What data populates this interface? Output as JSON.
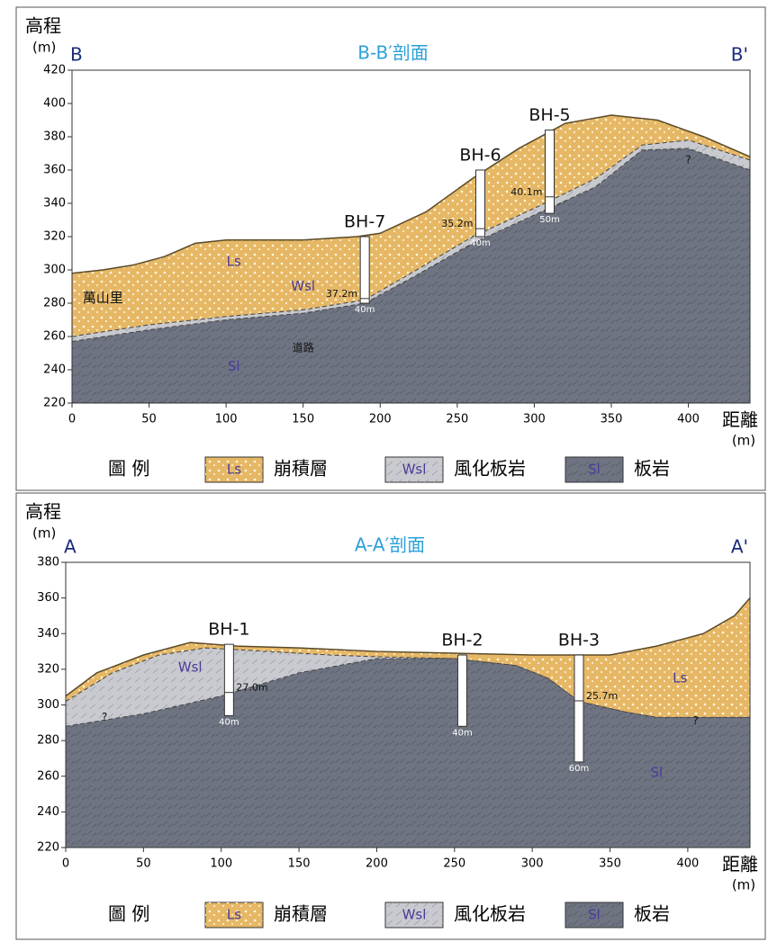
{
  "chart_data": [
    {
      "type": "section",
      "title": "B-B′剖面",
      "left_label": "B",
      "right_label": "B'",
      "y_label": "高程",
      "y_unit": "(m)",
      "x_label": "距離",
      "x_unit": "(m)",
      "xlim": [
        0,
        440
      ],
      "xticks": [
        0,
        50,
        100,
        150,
        200,
        250,
        300,
        350,
        400
      ],
      "ylim": [
        220,
        420
      ],
      "yticks": [
        220,
        240,
        260,
        280,
        300,
        320,
        340,
        360,
        380,
        400,
        420
      ],
      "legend_title": "圖 例",
      "layers": [
        {
          "name": "Ls",
          "description": "崩積層",
          "color": "#e6b866",
          "x": [
            0,
            20,
            40,
            60,
            80,
            100,
            150,
            185,
            200,
            230,
            260,
            290,
            320,
            350,
            380,
            410,
            440
          ],
          "values": [
            298,
            300,
            303,
            308,
            316,
            318,
            318,
            320,
            322,
            335,
            355,
            373,
            388,
            393,
            390,
            380,
            368
          ]
        },
        {
          "name": "Wsl",
          "description": "風化板岩",
          "color": "#c9cacf",
          "x": [
            0,
            50,
            100,
            150,
            190,
            220,
            260,
            300,
            340,
            370,
            400,
            440
          ],
          "values": [
            260,
            267,
            272,
            276,
            282,
            298,
            320,
            337,
            355,
            375,
            378,
            366
          ]
        },
        {
          "name": "Sl",
          "description": "板岩",
          "color": "#6f7482",
          "x": [
            0,
            50,
            100,
            150,
            190,
            220,
            260,
            300,
            340,
            370,
            400,
            440
          ],
          "values": [
            257,
            264,
            270,
            274,
            280,
            295,
            316,
            333,
            350,
            372,
            373,
            360
          ]
        }
      ],
      "boreholes": {
        "names": [
          "BH-7",
          "BH-6",
          "BH-5"
        ],
        "x": [
          190,
          265,
          310
        ],
        "top": [
          320,
          360,
          384
        ],
        "depth": [
          40,
          40,
          50
        ],
        "depth_labels": [
          "40m",
          "40m",
          "50m"
        ],
        "contact": [
          37.2,
          35.2,
          40.1
        ],
        "contact_labels": [
          "37.2m",
          "35.2m",
          "40.1m"
        ]
      },
      "annotations": [
        "萬山里",
        "道路",
        "?"
      ]
    },
    {
      "type": "section",
      "title": "A-A′剖面",
      "left_label": "A",
      "right_label": "A'",
      "y_label": "高程",
      "y_unit": "(m)",
      "x_label": "距離",
      "x_unit": "(m)",
      "xlim": [
        0,
        440
      ],
      "xticks": [
        0,
        50,
        100,
        150,
        200,
        250,
        300,
        350,
        400
      ],
      "ylim": [
        220,
        380
      ],
      "yticks": [
        220,
        240,
        260,
        280,
        300,
        320,
        340,
        360,
        380
      ],
      "legend_title": "圖 例",
      "layers": [
        {
          "name": "Ls",
          "description": "崩積層",
          "color": "#e6b866",
          "x": [
            0,
            20,
            50,
            80,
            110,
            150,
            200,
            250,
            300,
            350,
            380,
            410,
            430,
            440
          ],
          "values": [
            305,
            318,
            328,
            335,
            333,
            332,
            330,
            329,
            328,
            328,
            333,
            340,
            350,
            360
          ]
        },
        {
          "name": "Wsl",
          "description": "風化板岩",
          "color": "#c9cacf",
          "x": [
            0,
            30,
            60,
            90,
            130,
            170,
            200,
            250,
            290,
            310,
            330,
            360,
            380,
            440
          ],
          "values": [
            302,
            318,
            328,
            332,
            330,
            328,
            327,
            326,
            322,
            315,
            302,
            296,
            293,
            293
          ]
        },
        {
          "name": "Sl",
          "description": "板岩",
          "color": "#6f7482",
          "x": [
            0,
            50,
            100,
            150,
            200,
            250,
            290,
            310,
            330,
            360,
            380,
            440
          ],
          "values": [
            288,
            295,
            305,
            318,
            326,
            326,
            322,
            315,
            302,
            296,
            293,
            293
          ]
        }
      ],
      "boreholes": {
        "names": [
          "BH-1",
          "BH-2",
          "BH-3"
        ],
        "x": [
          105,
          255,
          330
        ],
        "top": [
          334,
          328,
          328
        ],
        "depth": [
          40,
          40,
          60
        ],
        "depth_labels": [
          "40m",
          "40m",
          "60m"
        ],
        "contact": [
          27.0,
          null,
          25.7
        ],
        "contact_labels": [
          "27.0m",
          null,
          "25.7m"
        ]
      },
      "annotations": [
        "?",
        "?"
      ]
    }
  ]
}
